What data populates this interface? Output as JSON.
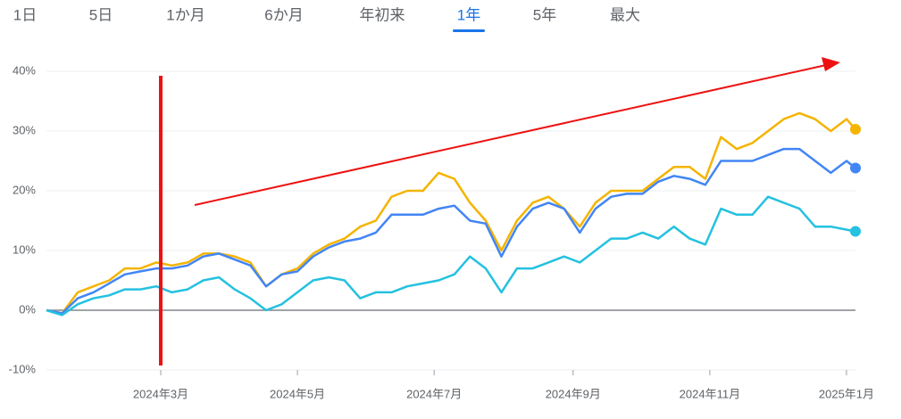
{
  "tabs": [
    "1日",
    "5日",
    "1か月",
    "6か月",
    "年初来",
    "1年",
    "5年",
    "最大"
  ],
  "selected_tab": 5,
  "chart_data": {
    "type": "line",
    "x": [
      0,
      7,
      14,
      21,
      28,
      35,
      42,
      49,
      56,
      63,
      70,
      77,
      84,
      91,
      98,
      105,
      112,
      119,
      126,
      133,
      140,
      147,
      154,
      161,
      168,
      175,
      182,
      189,
      196,
      203,
      210,
      217,
      224,
      231,
      238,
      245,
      252,
      259,
      266,
      273,
      280,
      287,
      294,
      301,
      308,
      315,
      322,
      329,
      336,
      343,
      350,
      357,
      361
    ],
    "xlim": [
      0,
      361
    ],
    "xticks": [
      {
        "value": 51,
        "label": "2024年3月"
      },
      {
        "value": 112,
        "label": "2024年5月"
      },
      {
        "value": 173,
        "label": "2024年7月"
      },
      {
        "value": 235,
        "label": "2024年9月"
      },
      {
        "value": 296,
        "label": "2024年11月"
      },
      {
        "value": 357,
        "label": "2025年1月"
      }
    ],
    "ylim": [
      -10,
      40
    ],
    "yticks": [
      {
        "value": -10,
        "label": "-10%"
      },
      {
        "value": 0,
        "label": "0%"
      },
      {
        "value": 10,
        "label": "10%"
      },
      {
        "value": 20,
        "label": "20%"
      },
      {
        "value": 30,
        "label": "30%"
      },
      {
        "value": 40,
        "label": "40%"
      }
    ],
    "grid": true,
    "series": [
      {
        "color": "#f4b400",
        "values": [
          0,
          -0.5,
          3,
          4,
          5,
          7,
          7,
          8,
          7.5,
          8,
          9.5,
          9.5,
          9,
          8,
          4,
          6,
          7,
          9.5,
          11,
          12,
          14,
          15,
          19,
          20,
          20,
          23,
          22,
          18,
          15,
          10,
          15,
          18,
          19,
          17,
          14,
          18,
          20,
          20,
          20,
          22,
          24,
          24,
          22,
          29,
          27,
          28,
          30,
          32,
          33,
          32,
          30,
          32,
          30.3
        ]
      },
      {
        "color": "#4285f4",
        "values": [
          0,
          -0.5,
          2,
          3,
          4.5,
          6,
          6.5,
          7,
          7,
          7.5,
          9,
          9.5,
          8.5,
          7.5,
          4,
          6,
          6.5,
          9,
          10.5,
          11.5,
          12,
          13,
          16,
          16,
          16,
          17,
          17.5,
          15,
          14.5,
          9,
          14,
          17,
          18,
          17,
          13,
          17,
          19,
          19.5,
          19.5,
          21.5,
          22.5,
          22,
          21,
          25,
          25,
          25,
          26,
          27,
          27,
          25,
          23,
          25,
          23.8
        ]
      },
      {
        "color": "#24c1e0",
        "values": [
          0,
          -0.8,
          1,
          2,
          2.5,
          3.5,
          3.5,
          4,
          3,
          3.5,
          5,
          5.5,
          3.5,
          2,
          0,
          1,
          3,
          5,
          5.5,
          5,
          2,
          3,
          3,
          4,
          4.5,
          5,
          6,
          9,
          7,
          3,
          7,
          7,
          8,
          9,
          8,
          10,
          12,
          12,
          13,
          12,
          14,
          12,
          11,
          17,
          16,
          16,
          19,
          18,
          17,
          14,
          14,
          13.5,
          13.2
        ]
      }
    ]
  }
}
